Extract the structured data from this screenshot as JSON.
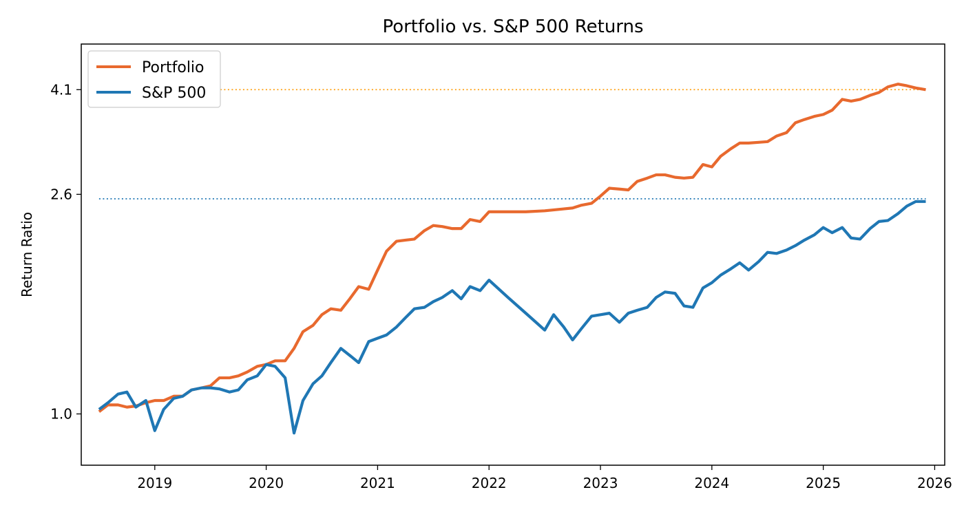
{
  "chart_data": {
    "type": "line",
    "title": "Portfolio vs. S&P 500 Returns",
    "xlabel": "",
    "ylabel": "Return Ratio",
    "y_scale": "log",
    "xlim": [
      2018.34,
      2026.09
    ],
    "ylim": [
      0.8,
      5.0
    ],
    "x_ticks": [
      2019,
      2020,
      2021,
      2022,
      2023,
      2024,
      2025,
      2026
    ],
    "x_tick_labels": [
      "2019",
      "2020",
      "2021",
      "2022",
      "2023",
      "2024",
      "2025",
      "2026"
    ],
    "y_ticks": [
      1.0,
      2.6,
      4.1
    ],
    "y_tick_labels": [
      "1.0",
      "2.6",
      "4.1"
    ],
    "grid": false,
    "legend_position": "top-left",
    "series": [
      {
        "name": "Portfolio",
        "color": "#e8692e",
        "x": [
          2018.5,
          2018.58,
          2018.67,
          2018.75,
          2018.83,
          2018.92,
          2019.0,
          2019.08,
          2019.17,
          2019.25,
          2019.33,
          2019.42,
          2019.5,
          2019.58,
          2019.67,
          2019.75,
          2019.83,
          2019.92,
          2020.0,
          2020.08,
          2020.17,
          2020.25,
          2020.33,
          2020.42,
          2020.5,
          2020.58,
          2020.67,
          2020.75,
          2020.83,
          2020.92,
          2021.0,
          2021.08,
          2021.17,
          2021.25,
          2021.33,
          2021.42,
          2021.5,
          2021.58,
          2021.67,
          2021.75,
          2021.83,
          2021.92,
          2022.0,
          2022.17,
          2022.33,
          2022.5,
          2022.67,
          2022.75,
          2022.83,
          2022.92,
          2023.0,
          2023.08,
          2023.17,
          2023.25,
          2023.33,
          2023.42,
          2023.5,
          2023.58,
          2023.67,
          2023.75,
          2023.83,
          2023.92,
          2024.0,
          2024.08,
          2024.17,
          2024.25,
          2024.33,
          2024.42,
          2024.5,
          2024.58,
          2024.67,
          2024.75,
          2024.83,
          2024.92,
          2025.0,
          2025.08,
          2025.17,
          2025.25,
          2025.33,
          2025.42,
          2025.5,
          2025.58,
          2025.67,
          2025.75,
          2025.83,
          2025.92
        ],
        "y": [
          1.01,
          1.04,
          1.04,
          1.03,
          1.035,
          1.05,
          1.06,
          1.06,
          1.08,
          1.08,
          1.11,
          1.12,
          1.13,
          1.17,
          1.17,
          1.18,
          1.2,
          1.23,
          1.24,
          1.26,
          1.26,
          1.33,
          1.43,
          1.47,
          1.54,
          1.58,
          1.57,
          1.65,
          1.74,
          1.72,
          1.87,
          2.03,
          2.12,
          2.13,
          2.14,
          2.22,
          2.27,
          2.26,
          2.24,
          2.24,
          2.33,
          2.31,
          2.41,
          2.41,
          2.41,
          2.42,
          2.44,
          2.45,
          2.48,
          2.5,
          2.58,
          2.67,
          2.66,
          2.65,
          2.75,
          2.79,
          2.83,
          2.83,
          2.8,
          2.79,
          2.8,
          2.96,
          2.93,
          3.07,
          3.17,
          3.25,
          3.25,
          3.26,
          3.27,
          3.35,
          3.4,
          3.55,
          3.6,
          3.65,
          3.68,
          3.75,
          3.93,
          3.9,
          3.93,
          4.0,
          4.05,
          4.15,
          4.2,
          4.17,
          4.13,
          4.1
        ]
      },
      {
        "name": "S&P 500",
        "color": "#1f77b4",
        "x": [
          2018.5,
          2018.58,
          2018.67,
          2018.75,
          2018.83,
          2018.92,
          2019.0,
          2019.08,
          2019.17,
          2019.25,
          2019.33,
          2019.42,
          2019.5,
          2019.58,
          2019.67,
          2019.75,
          2019.83,
          2019.92,
          2020.0,
          2020.08,
          2020.17,
          2020.25,
          2020.33,
          2020.42,
          2020.5,
          2020.58,
          2020.67,
          2020.75,
          2020.83,
          2020.92,
          2021.0,
          2021.08,
          2021.17,
          2021.25,
          2021.33,
          2021.42,
          2021.5,
          2021.58,
          2021.67,
          2021.75,
          2021.83,
          2021.92,
          2022.0,
          2022.17,
          2022.33,
          2022.5,
          2022.58,
          2022.67,
          2022.75,
          2022.83,
          2022.92,
          2023.0,
          2023.08,
          2023.17,
          2023.25,
          2023.33,
          2023.42,
          2023.5,
          2023.58,
          2023.67,
          2023.75,
          2023.83,
          2023.92,
          2024.0,
          2024.08,
          2024.17,
          2024.25,
          2024.33,
          2024.42,
          2024.5,
          2024.58,
          2024.67,
          2024.75,
          2024.83,
          2024.92,
          2025.0,
          2025.08,
          2025.17,
          2025.25,
          2025.33,
          2025.42,
          2025.5,
          2025.58,
          2025.67,
          2025.75,
          2025.83,
          2025.92
        ],
        "y": [
          1.02,
          1.05,
          1.09,
          1.1,
          1.03,
          1.06,
          0.93,
          1.02,
          1.07,
          1.08,
          1.11,
          1.12,
          1.12,
          1.115,
          1.1,
          1.11,
          1.16,
          1.18,
          1.24,
          1.23,
          1.17,
          0.92,
          1.06,
          1.14,
          1.18,
          1.25,
          1.33,
          1.29,
          1.25,
          1.37,
          1.39,
          1.41,
          1.46,
          1.52,
          1.58,
          1.59,
          1.63,
          1.66,
          1.71,
          1.65,
          1.74,
          1.71,
          1.79,
          1.66,
          1.55,
          1.44,
          1.54,
          1.46,
          1.38,
          1.45,
          1.53,
          1.54,
          1.55,
          1.49,
          1.55,
          1.57,
          1.59,
          1.66,
          1.7,
          1.69,
          1.6,
          1.59,
          1.73,
          1.77,
          1.83,
          1.88,
          1.93,
          1.87,
          1.94,
          2.02,
          2.01,
          2.04,
          2.08,
          2.13,
          2.18,
          2.25,
          2.2,
          2.25,
          2.15,
          2.14,
          2.24,
          2.31,
          2.32,
          2.39,
          2.47,
          2.52,
          2.52
        ]
      }
    ],
    "reference_lines": [
      {
        "series": "Portfolio",
        "y": 4.1,
        "color": "#ff9f0f",
        "style": "dotted"
      },
      {
        "series": "S&P 500",
        "y": 2.55,
        "color": "#1f77b4",
        "style": "dotted"
      }
    ]
  }
}
